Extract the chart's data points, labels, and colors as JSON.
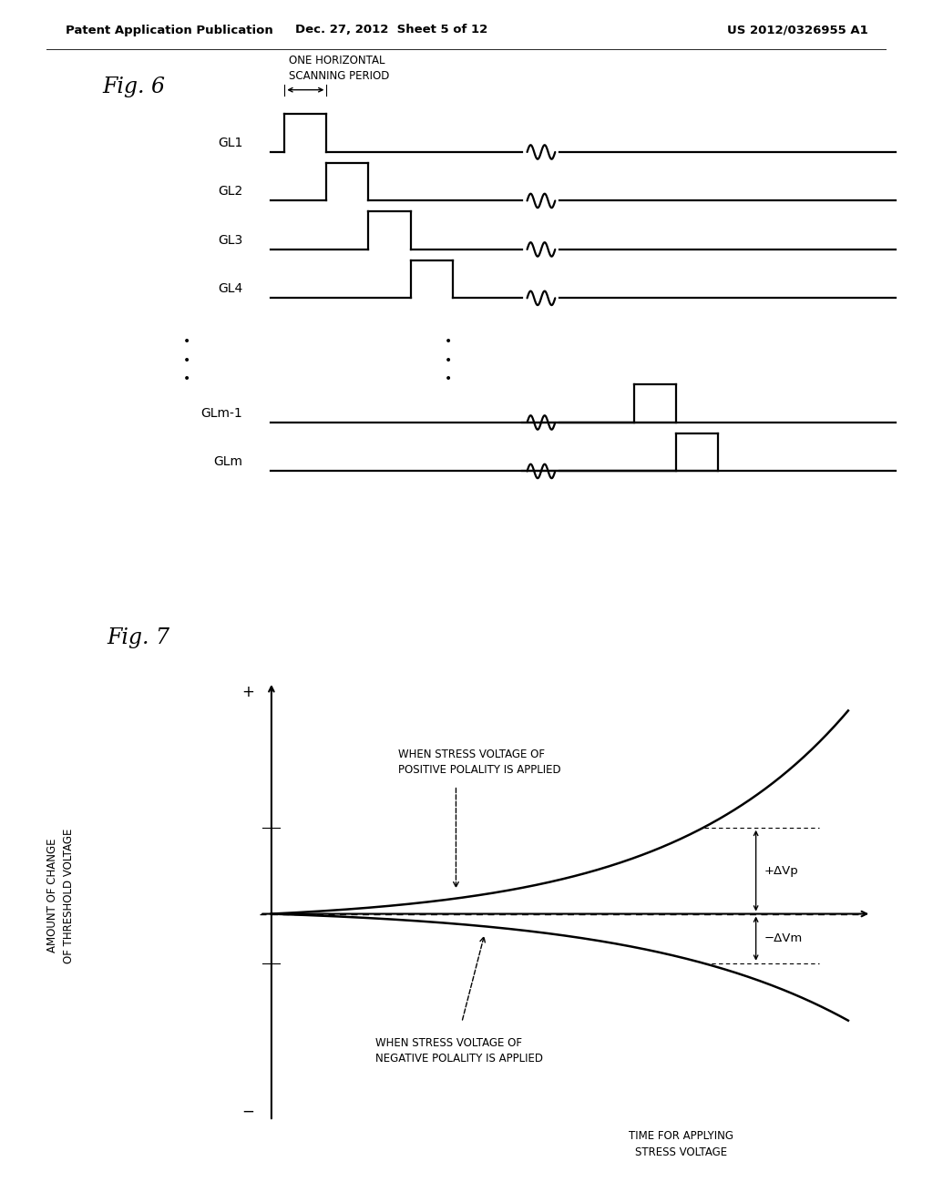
{
  "header_left": "Patent Application Publication",
  "header_center": "Dec. 27, 2012  Sheet 5 of 12",
  "header_right": "US 2012/0326955 A1",
  "fig6_title": "Fig. 6",
  "fig7_title": "Fig. 7",
  "fig6_annotation": "ONE HORIZONTAL\nSCANNING PERIOD",
  "fig6_labels": [
    "GL1",
    "GL2",
    "GL3",
    "GL4",
    "GLm-1",
    "GLm"
  ],
  "fig7_xlabel": "TIME FOR APPLYING\nSTRESS VOLTAGE",
  "fig7_ylabel": "AMOUNT OF CHANGE\nOF THRESHOLD VOLTAGE",
  "fig7_yplus": "+",
  "fig7_yminus": "−",
  "fig7_label_pos": "WHEN STRESS VOLTAGE OF\nPOSITIVE POLALITY IS APPLIED",
  "fig7_label_neg": "WHEN STRESS VOLTAGE OF\nNEGATIVE POLALITY IS APPLIED",
  "fig7_delta_vp": "+ΔVp",
  "fig7_delta_vm": "−ΔVm",
  "bg_color": "#ffffff",
  "line_color": "#000000"
}
